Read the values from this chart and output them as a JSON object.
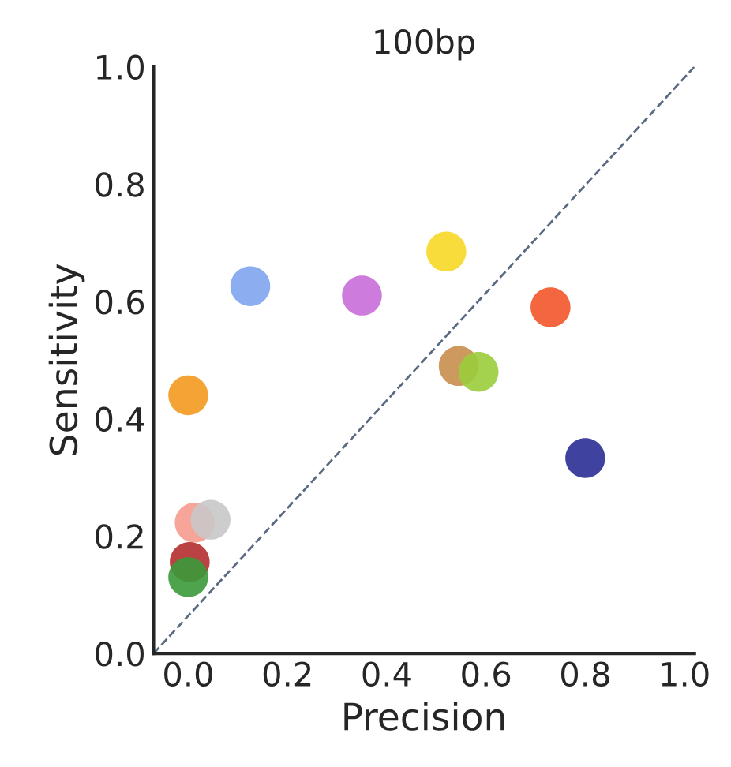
{
  "chart_data": {
    "type": "scatter",
    "title": "100bp",
    "xlabel": "Precision",
    "ylabel": "Sensitivity",
    "xlim": [
      -0.07,
      1.02
    ],
    "ylim": [
      0.0,
      1.0
    ],
    "xticks": [
      {
        "value": 0,
        "label": "0.0"
      },
      0.2,
      0.4,
      0.6,
      0.8,
      {
        "value": 1,
        "label": "1.0"
      }
    ],
    "yticks": [
      {
        "value": 0,
        "label": "0.0"
      },
      0.2,
      0.4,
      0.6,
      0.8,
      {
        "value": 1,
        "label": "1.0"
      }
    ],
    "grid": false,
    "marker": "circle",
    "series": [
      {
        "x": [
          0.125,
          0.35,
          0.52,
          0.73,
          0.0,
          0.545,
          0.585,
          0.8,
          0.013,
          0.045,
          0.003,
          0.0
        ],
        "values": [
          0.626,
          0.61,
          0.685,
          0.59,
          0.44,
          0.49,
          0.48,
          0.333,
          0.223,
          0.228,
          0.156,
          0.13
        ],
        "colors": [
          "#7fa5ee",
          "#c86ed9",
          "#f7d827",
          "#f2552a",
          "#f39a1e",
          "#c98e4e",
          "#9acd3c",
          "#2a2f95",
          "#f69a8e",
          "#c8c8c8",
          "#b22e2e",
          "#3a9a3a"
        ]
      },
      {
        "type": "line",
        "x": [
          -0.07,
          1.02
        ],
        "values": [
          0.0,
          1.0
        ],
        "color": "#5a6a80",
        "line_style": "dashed",
        "marker": "none"
      }
    ]
  }
}
